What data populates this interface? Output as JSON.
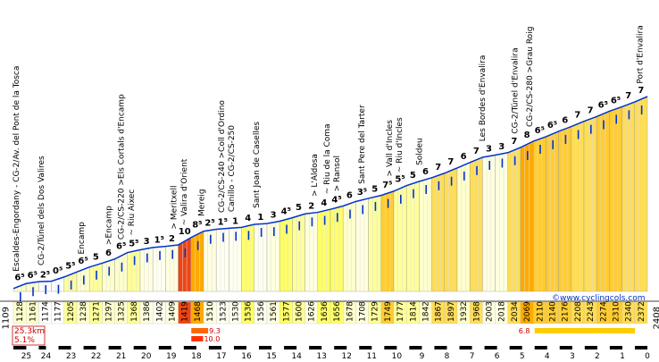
{
  "chart_data": {
    "type": "area",
    "title": "",
    "xlabel": "",
    "ylabel": "",
    "start_altitude_label": "1109",
    "end_altitude_label": "2408",
    "watermark": "©www.cyclingcols.com",
    "summary": {
      "distance": "25.3km",
      "avg_gradient": "5.1%"
    },
    "max_gradient_markers": [
      {
        "label": "6.8",
        "km_from": 4.5,
        "km_to": 0.5,
        "level": 1
      },
      {
        "label": "9.3",
        "km_from": 18.2,
        "km_to": 17.6,
        "level": 1
      },
      {
        "label": "10.0",
        "km_from": 18.2,
        "km_to": 17.8,
        "level": 2
      }
    ],
    "km_ticks": [
      "25",
      "24",
      "23",
      "22",
      "21",
      "20",
      "19",
      "18",
      "17",
      "16",
      "15",
      "14",
      "13",
      "12",
      "11",
      "10",
      "9",
      "8",
      "7",
      "6",
      "5",
      "4",
      "3",
      "2",
      "1",
      "0"
    ],
    "x_start_km": 25.3,
    "segments": [
      {
        "gradient": "6⁵",
        "altitude": "1128",
        "color": "#ffffcc"
      },
      {
        "gradient": "6⁵",
        "altitude": "1161",
        "color": "#ffffcc"
      },
      {
        "gradient": "2⁵",
        "altitude": "1174",
        "color": "#ffffff"
      },
      {
        "gradient": "0⁵",
        "altitude": "1177",
        "color": "#ffffff"
      },
      {
        "gradient": "5⁵",
        "altitude": "1205",
        "color": "#ffff99"
      },
      {
        "gradient": "6⁵",
        "altitude": "1238",
        "color": "#ffffcc"
      },
      {
        "gradient": "5",
        "altitude": "1271",
        "color": "#ffff99"
      },
      {
        "gradient": "6",
        "altitude": "1297",
        "color": "#ffffcc"
      },
      {
        "gradient": "6⁵",
        "altitude": "1325",
        "color": "#ffffcc"
      },
      {
        "gradient": "5⁵",
        "altitude": "1368",
        "color": "#ffff99"
      },
      {
        "gradient": "3",
        "altitude": "1386",
        "color": "#ffffe0"
      },
      {
        "gradient": "1⁵",
        "altitude": "1402",
        "color": "#fffff0"
      },
      {
        "gradient": "2",
        "altitude": "1409",
        "color": "#ffffe0"
      },
      {
        "gradient": "10",
        "altitude": "1419",
        "color": "#ee4411"
      },
      {
        "gradient": "8⁵",
        "altitude": "1468",
        "color": "#ffaa00"
      },
      {
        "gradient": "2⁵",
        "altitude": "1510",
        "color": "#ffffe0"
      },
      {
        "gradient": "1⁵",
        "altitude": "1523",
        "color": "#fffff0"
      },
      {
        "gradient": "1",
        "altitude": "1530",
        "color": "#fffff0"
      },
      {
        "gradient": "4",
        "altitude": "1536",
        "color": "#ffff66"
      },
      {
        "gradient": "1",
        "altitude": "1556",
        "color": "#fffff0"
      },
      {
        "gradient": "3",
        "altitude": "1561",
        "color": "#ffffe0"
      },
      {
        "gradient": "4⁵",
        "altitude": "1577",
        "color": "#ffff66"
      },
      {
        "gradient": "5",
        "altitude": "1600",
        "color": "#ffff99"
      },
      {
        "gradient": "2",
        "altitude": "1626",
        "color": "#ffffe0"
      },
      {
        "gradient": "4",
        "altitude": "1636",
        "color": "#ffff66"
      },
      {
        "gradient": "4⁵",
        "altitude": "1656",
        "color": "#ffff66"
      },
      {
        "gradient": "6",
        "altitude": "1678",
        "color": "#ffffcc"
      },
      {
        "gradient": "3⁵",
        "altitude": "1708",
        "color": "#ffffe0"
      },
      {
        "gradient": "5",
        "altitude": "1729",
        "color": "#ffff99"
      },
      {
        "gradient": "7⁵",
        "altitude": "1749",
        "color": "#ffcc33"
      },
      {
        "gradient": "5⁵",
        "altitude": "1777",
        "color": "#ffff99"
      },
      {
        "gradient": "5",
        "altitude": "1814",
        "color": "#ffff99"
      },
      {
        "gradient": "6",
        "altitude": "1842",
        "color": "#ffffcc"
      },
      {
        "gradient": "7",
        "altitude": "1867",
        "color": "#ffdd55"
      },
      {
        "gradient": "7",
        "altitude": "1897",
        "color": "#ffdd55"
      },
      {
        "gradient": "6",
        "altitude": "1932",
        "color": "#ffffcc"
      },
      {
        "gradient": "7",
        "altitude": "1968",
        "color": "#ffdd55"
      },
      {
        "gradient": "3",
        "altitude": "2003",
        "color": "#ffffe0"
      },
      {
        "gradient": "3",
        "altitude": "2018",
        "color": "#ffffe0"
      },
      {
        "gradient": "7",
        "altitude": "2034",
        "color": "#ffdd55"
      },
      {
        "gradient": "8",
        "altitude": "2069",
        "color": "#ffaa00"
      },
      {
        "gradient": "6⁵",
        "altitude": "2110",
        "color": "#ffcc33"
      },
      {
        "gradient": "6⁵",
        "altitude": "2140",
        "color": "#ffcc33"
      },
      {
        "gradient": "6",
        "altitude": "2176",
        "color": "#ffcc33"
      },
      {
        "gradient": "7",
        "altitude": "2208",
        "color": "#ffdd55"
      },
      {
        "gradient": "7",
        "altitude": "2243",
        "color": "#ffdd55"
      },
      {
        "gradient": "6⁵",
        "altitude": "2274",
        "color": "#ffcc33"
      },
      {
        "gradient": "6⁵",
        "altitude": "2310",
        "color": "#ffcc33"
      },
      {
        "gradient": "7",
        "altitude": "2340",
        "color": "#ffdd55"
      },
      {
        "gradient": "7",
        "altitude": "2372",
        "color": "#ffdd55"
      }
    ],
    "annotations": [
      {
        "text": "Escaldes-Engordany - CG-2/Av. del Pont de la Tosca",
        "km": 25.2
      },
      {
        "text": "CG-2/Túnel dels Dos Valires",
        "km": 24.2
      },
      {
        "text": "Encamp",
        "km": 22.6
      },
      {
        "text": ">Encamp",
        "km": 21.5
      },
      {
        "text": "CG-2/CS-220 >Els Cortals d'Encamp",
        "km": 21.0
      },
      {
        "text": "~ Riu Aixec",
        "km": 20.6
      },
      {
        "text": "> Meritxell",
        "km": 18.9
      },
      {
        "text": "~ Valira d'Orient",
        "km": 18.5
      },
      {
        "text": "Mereig",
        "km": 17.8
      },
      {
        "text": "CG-2/CS-240 >Coll d'Ordino",
        "km": 17.0
      },
      {
        "text": "Canillo - CG-2/CS-250",
        "km": 16.6
      },
      {
        "text": "Sant Joan de Caselles",
        "km": 15.6
      },
      {
        "text": "> L'Aldosa",
        "km": 13.3
      },
      {
        "text": "~ Riu de la Coma",
        "km": 12.8
      },
      {
        "text": "> Ransol",
        "km": 12.4
      },
      {
        "text": "Sant Pere del Tarter",
        "km": 11.4
      },
      {
        "text": "> Vall d'Incles",
        "km": 10.3
      },
      {
        "text": "~ Riu d'Incles",
        "km": 9.9
      },
      {
        "text": "Soldeu",
        "km": 9.1
      },
      {
        "text": "Les Bordes d'Envalira",
        "km": 6.6
      },
      {
        "text": "CG-2/Túnel d'Envalira",
        "km": 5.3
      },
      {
        "text": "CG-2/CS-280 >Grau Roig",
        "km": 4.7
      },
      {
        "text": "Port d'Envalira",
        "km": 0.3
      }
    ]
  }
}
